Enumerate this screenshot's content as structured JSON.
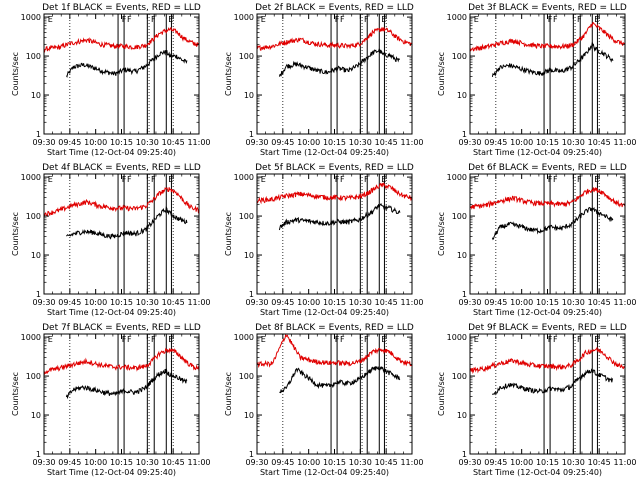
{
  "colors": {
    "events": "#000000",
    "lld": "#e00000",
    "background": "#ffffff"
  },
  "common": {
    "xlabel": "Start Time (12-Oct-04 09:25:40)",
    "ylabel": "Counts/sec",
    "x_ticks": [
      "09:30",
      "09:45",
      "10:00",
      "10:15",
      "10:30",
      "10:45",
      "11:00"
    ],
    "y_ticks": [
      "1",
      "10",
      "100",
      "1000"
    ]
  },
  "chart_data": [
    {
      "type": "line",
      "title": "Det 1f BLACK = Events, RED = LLD",
      "x_unit": "minutes",
      "x_range": [
        5,
        95
      ],
      "ylim": [
        1,
        1200
      ],
      "y_scale": "log",
      "dotted_lines_x": [
        20,
        66,
        80
      ],
      "attenuator_bars": [
        [
          48,
          51.5
        ],
        [
          65,
          69
        ],
        [
          76,
          79
        ]
      ],
      "markers": [
        {
          "label": "E",
          "x": 6
        },
        {
          "label": "F",
          "x": 49
        },
        {
          "label": "F",
          "x": 52
        },
        {
          "label": "F",
          "x": 66
        },
        {
          "label": "E",
          "x": 76
        }
      ],
      "series": [
        {
          "name": "Events",
          "x": [
            18,
            22,
            28,
            34,
            40,
            46,
            52,
            58,
            64,
            68,
            72,
            76,
            78,
            82,
            86,
            88
          ],
          "y": [
            30,
            52,
            60,
            50,
            40,
            35,
            45,
            40,
            55,
            80,
            115,
            130,
            100,
            100,
            75,
            70
          ]
        },
        {
          "name": "LLD",
          "x": [
            5,
            14,
            22,
            30,
            38,
            46,
            52,
            58,
            64,
            68,
            72,
            76,
            78,
            82,
            86,
            90,
            95
          ],
          "y": [
            150,
            170,
            220,
            260,
            200,
            180,
            180,
            170,
            190,
            260,
            380,
            450,
            480,
            420,
            290,
            230,
            190
          ]
        }
      ]
    },
    {
      "type": "line",
      "title": "Det 2f BLACK = Events, RED = LLD",
      "x_unit": "minutes",
      "x_range": [
        5,
        95
      ],
      "ylim": [
        1,
        1200
      ],
      "y_scale": "log",
      "dotted_lines_x": [
        20,
        66,
        80
      ],
      "attenuator_bars": [
        [
          48,
          51.5
        ],
        [
          65,
          69
        ],
        [
          76,
          79
        ]
      ],
      "markers": [
        {
          "label": "E",
          "x": 6
        },
        {
          "label": "F",
          "x": 49
        },
        {
          "label": "F",
          "x": 52
        },
        {
          "label": "F",
          "x": 66
        },
        {
          "label": "E",
          "x": 76
        }
      ],
      "series": [
        {
          "name": "Events",
          "x": [
            18,
            22,
            28,
            34,
            40,
            46,
            52,
            58,
            64,
            68,
            72,
            76,
            78,
            82,
            86,
            88
          ],
          "y": [
            30,
            55,
            62,
            52,
            42,
            38,
            48,
            42,
            58,
            85,
            120,
            140,
            110,
            105,
            80,
            75
          ]
        },
        {
          "name": "LLD",
          "x": [
            5,
            14,
            22,
            30,
            38,
            46,
            52,
            58,
            64,
            68,
            72,
            76,
            78,
            82,
            86,
            90,
            95
          ],
          "y": [
            160,
            180,
            230,
            270,
            210,
            190,
            190,
            180,
            200,
            270,
            400,
            470,
            500,
            430,
            300,
            240,
            200
          ]
        }
      ]
    },
    {
      "type": "line",
      "title": "Det 3f BLACK = Events, RED = LLD",
      "x_unit": "minutes",
      "x_range": [
        5,
        95
      ],
      "ylim": [
        1,
        1200
      ],
      "y_scale": "log",
      "dotted_lines_x": [
        20,
        66,
        80
      ],
      "attenuator_bars": [
        [
          48,
          51.5
        ],
        [
          65,
          69
        ],
        [
          76,
          79
        ]
      ],
      "markers": [
        {
          "label": "E",
          "x": 6
        },
        {
          "label": "F",
          "x": 49
        },
        {
          "label": "F",
          "x": 52
        },
        {
          "label": "F",
          "x": 66
        },
        {
          "label": "E",
          "x": 76
        }
      ],
      "series": [
        {
          "name": "Events",
          "x": [
            18,
            22,
            28,
            34,
            40,
            46,
            52,
            58,
            64,
            68,
            72,
            76,
            78,
            82,
            86,
            88
          ],
          "y": [
            30,
            50,
            58,
            48,
            40,
            36,
            44,
            40,
            52,
            75,
            110,
            200,
            150,
            120,
            90,
            80
          ]
        },
        {
          "name": "LLD",
          "x": [
            5,
            14,
            22,
            30,
            38,
            46,
            52,
            58,
            64,
            68,
            72,
            76,
            78,
            82,
            86,
            90,
            95
          ],
          "y": [
            150,
            170,
            210,
            250,
            200,
            180,
            180,
            175,
            190,
            250,
            370,
            700,
            600,
            450,
            320,
            240,
            200
          ]
        }
      ]
    },
    {
      "type": "line",
      "title": "Det 4f BLACK = Events, RED = LLD",
      "x_unit": "minutes",
      "x_range": [
        5,
        95
      ],
      "ylim": [
        1,
        1200
      ],
      "y_scale": "log",
      "dotted_lines_x": [
        20,
        66,
        80
      ],
      "attenuator_bars": [
        [
          48,
          51.5
        ],
        [
          65,
          69
        ],
        [
          76,
          79
        ]
      ],
      "markers": [
        {
          "label": "E",
          "x": 6
        },
        {
          "label": "F",
          "x": 49
        },
        {
          "label": "F",
          "x": 52
        },
        {
          "label": "F",
          "x": 66
        },
        {
          "label": "E",
          "x": 76
        }
      ],
      "series": [
        {
          "name": "Events",
          "x": [
            18,
            22,
            28,
            34,
            40,
            46,
            52,
            58,
            64,
            68,
            72,
            76,
            78,
            82,
            86,
            88
          ],
          "y": [
            28,
            35,
            40,
            38,
            32,
            30,
            38,
            35,
            45,
            70,
            110,
            150,
            120,
            90,
            75,
            70
          ]
        },
        {
          "name": "LLD",
          "x": [
            5,
            14,
            22,
            30,
            38,
            46,
            52,
            58,
            64,
            68,
            72,
            76,
            78,
            82,
            86,
            90,
            95
          ],
          "y": [
            110,
            140,
            190,
            230,
            180,
            160,
            160,
            155,
            180,
            250,
            380,
            480,
            500,
            400,
            250,
            170,
            140
          ]
        }
      ]
    },
    {
      "type": "line",
      "title": "Det 5f BLACK = Events, RED = LLD",
      "x_unit": "minutes",
      "x_range": [
        5,
        95
      ],
      "ylim": [
        1,
        1200
      ],
      "y_scale": "log",
      "dotted_lines_x": [
        20,
        66,
        80
      ],
      "attenuator_bars": [
        [
          48,
          51.5
        ],
        [
          65,
          69
        ],
        [
          76,
          79
        ]
      ],
      "markers": [
        {
          "label": "E",
          "x": 6
        },
        {
          "label": "F",
          "x": 49
        },
        {
          "label": "F",
          "x": 52
        },
        {
          "label": "F",
          "x": 66
        },
        {
          "label": "E",
          "x": 76
        }
      ],
      "series": [
        {
          "name": "Events",
          "x": [
            18,
            22,
            28,
            34,
            40,
            46,
            52,
            58,
            64,
            68,
            72,
            76,
            78,
            82,
            86,
            88
          ],
          "y": [
            50,
            70,
            80,
            75,
            70,
            65,
            72,
            70,
            80,
            100,
            130,
            190,
            170,
            160,
            130,
            120
          ]
        },
        {
          "name": "LLD",
          "x": [
            5,
            14,
            22,
            30,
            38,
            46,
            52,
            58,
            64,
            68,
            72,
            76,
            78,
            82,
            86,
            90,
            95
          ],
          "y": [
            250,
            270,
            330,
            370,
            330,
            300,
            300,
            290,
            310,
            360,
            460,
            600,
            620,
            560,
            420,
            330,
            290
          ]
        }
      ]
    },
    {
      "type": "line",
      "title": "Det 6f BLACK = Events, RED = LLD",
      "x_unit": "minutes",
      "x_range": [
        5,
        95
      ],
      "ylim": [
        1,
        1200
      ],
      "y_scale": "log",
      "dotted_lines_x": [
        20,
        66,
        80
      ],
      "attenuator_bars": [
        [
          48,
          51.5
        ],
        [
          65,
          69
        ],
        [
          76,
          79
        ]
      ],
      "markers": [
        {
          "label": "E",
          "x": 6
        },
        {
          "label": "F",
          "x": 49
        },
        {
          "label": "F",
          "x": 52
        },
        {
          "label": "F",
          "x": 66
        },
        {
          "label": "E",
          "x": 76
        }
      ],
      "series": [
        {
          "name": "Events",
          "x": [
            18,
            22,
            28,
            34,
            40,
            46,
            52,
            58,
            64,
            68,
            72,
            76,
            78,
            82,
            86,
            88
          ],
          "y": [
            25,
            50,
            62,
            55,
            45,
            42,
            52,
            48,
            62,
            90,
            130,
            160,
            130,
            110,
            85,
            80
          ]
        },
        {
          "name": "LLD",
          "x": [
            5,
            14,
            22,
            30,
            38,
            46,
            52,
            58,
            64,
            68,
            72,
            76,
            78,
            82,
            86,
            90,
            95
          ],
          "y": [
            170,
            190,
            240,
            290,
            230,
            210,
            210,
            200,
            220,
            300,
            420,
            480,
            480,
            410,
            290,
            220,
            180
          ]
        }
      ]
    },
    {
      "type": "line",
      "title": "Det 7f BLACK = Events, RED = LLD",
      "x_unit": "minutes",
      "x_range": [
        5,
        95
      ],
      "ylim": [
        1,
        1200
      ],
      "y_scale": "log",
      "dotted_lines_x": [
        20,
        66,
        80
      ],
      "attenuator_bars": [
        [
          48,
          51.5
        ],
        [
          65,
          69
        ],
        [
          76,
          79
        ]
      ],
      "markers": [
        {
          "label": "E",
          "x": 6
        },
        {
          "label": "F",
          "x": 49
        },
        {
          "label": "F",
          "x": 52
        },
        {
          "label": "F",
          "x": 66
        },
        {
          "label": "E",
          "x": 76
        }
      ],
      "series": [
        {
          "name": "Events",
          "x": [
            18,
            22,
            28,
            34,
            40,
            46,
            52,
            58,
            64,
            68,
            72,
            76,
            78,
            82,
            86,
            88
          ],
          "y": [
            28,
            45,
            52,
            45,
            38,
            34,
            42,
            38,
            50,
            80,
            115,
            140,
            110,
            95,
            75,
            70
          ]
        },
        {
          "name": "LLD",
          "x": [
            5,
            14,
            22,
            30,
            38,
            46,
            52,
            58,
            64,
            68,
            72,
            76,
            78,
            82,
            86,
            90,
            95
          ],
          "y": [
            130,
            160,
            200,
            240,
            190,
            170,
            170,
            160,
            180,
            250,
            380,
            450,
            470,
            400,
            270,
            190,
            150
          ]
        }
      ]
    },
    {
      "type": "line",
      "title": "Det 8f BLACK = Events, RED = LLD",
      "x_unit": "minutes",
      "x_range": [
        5,
        95
      ],
      "ylim": [
        1,
        1200
      ],
      "y_scale": "log",
      "dotted_lines_x": [
        20,
        66,
        80
      ],
      "attenuator_bars": [
        [
          48,
          51.5
        ],
        [
          65,
          69
        ],
        [
          76,
          79
        ]
      ],
      "markers": [
        {
          "label": "E",
          "x": 6
        },
        {
          "label": "F",
          "x": 49
        },
        {
          "label": "F",
          "x": 52
        },
        {
          "label": "F",
          "x": 66
        },
        {
          "label": "E",
          "x": 76
        }
      ],
      "series": [
        {
          "name": "Events",
          "x": [
            18,
            22,
            28,
            34,
            40,
            46,
            52,
            58,
            64,
            68,
            72,
            76,
            78,
            82,
            86,
            88
          ],
          "y": [
            40,
            48,
            150,
            95,
            60,
            55,
            70,
            65,
            80,
            110,
            150,
            170,
            150,
            120,
            95,
            90
          ]
        },
        {
          "name": "LLD",
          "x": [
            5,
            14,
            22,
            30,
            38,
            46,
            52,
            58,
            64,
            68,
            72,
            76,
            78,
            82,
            86,
            90,
            95
          ],
          "y": [
            200,
            210,
            1200,
            300,
            240,
            220,
            220,
            210,
            230,
            300,
            420,
            470,
            480,
            420,
            300,
            230,
            200
          ]
        }
      ]
    },
    {
      "type": "line",
      "title": "Det 9f BLACK = Events, RED = LLD",
      "x_unit": "minutes",
      "x_range": [
        5,
        95
      ],
      "ylim": [
        1,
        1200
      ],
      "y_scale": "log",
      "dotted_lines_x": [
        20,
        66,
        80
      ],
      "attenuator_bars": [
        [
          48,
          51.5
        ],
        [
          65,
          69
        ],
        [
          76,
          79
        ]
      ],
      "markers": [
        {
          "label": "E",
          "x": 6
        },
        {
          "label": "F",
          "x": 49
        },
        {
          "label": "F",
          "x": 52
        },
        {
          "label": "F",
          "x": 66
        },
        {
          "label": "E",
          "x": 76
        }
      ],
      "series": [
        {
          "name": "Events",
          "x": [
            18,
            22,
            28,
            34,
            40,
            46,
            52,
            58,
            64,
            68,
            72,
            76,
            78,
            82,
            86,
            88
          ],
          "y": [
            30,
            50,
            60,
            52,
            44,
            40,
            48,
            44,
            55,
            85,
            120,
            145,
            115,
            100,
            80,
            75
          ]
        },
        {
          "name": "LLD",
          "x": [
            5,
            14,
            22,
            30,
            38,
            46,
            52,
            58,
            64,
            68,
            72,
            76,
            78,
            82,
            86,
            90,
            95
          ],
          "y": [
            140,
            160,
            210,
            250,
            200,
            180,
            180,
            170,
            190,
            260,
            390,
            460,
            480,
            410,
            280,
            200,
            160
          ]
        }
      ]
    }
  ]
}
